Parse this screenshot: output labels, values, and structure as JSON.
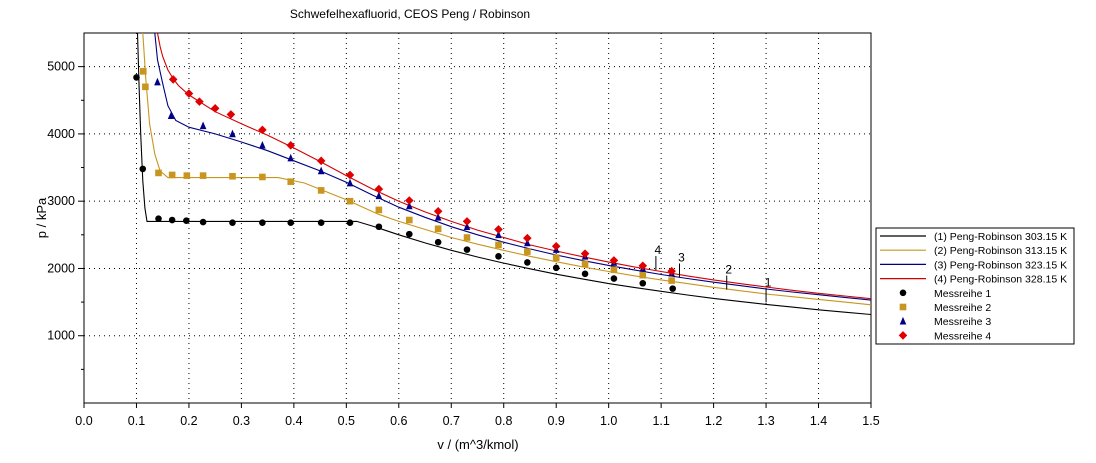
{
  "chart_data": {
    "type": "line",
    "title": "Schwefelhexafluorid,  CEOS Peng / Robinson",
    "xlabel": "v / (m^3/kmol)",
    "ylabel": "p / kPa",
    "xlim": [
      0.0,
      1.5
    ],
    "ylim": [
      0,
      5500
    ],
    "x_ticks": [
      "0.0",
      "0.1",
      "0.2",
      "0.3",
      "0.4",
      "0.5",
      "0.6",
      "0.7",
      "0.8",
      "0.9",
      "1.0",
      "1.1",
      "1.2",
      "1.3",
      "1.4",
      "1.5"
    ],
    "x_tick_values": [
      0,
      0.1,
      0.2,
      0.3,
      0.4,
      0.5,
      0.6,
      0.7,
      0.8,
      0.9,
      1.0,
      1.1,
      1.2,
      1.3,
      1.4,
      1.5
    ],
    "y_ticks": [
      "1000",
      "2000",
      "3000",
      "4000",
      "5000"
    ],
    "y_tick_values": [
      1000,
      2000,
      3000,
      4000,
      5000
    ],
    "grid": true,
    "legend_position": "right",
    "series": [
      {
        "name": "(1) Peng-Robinson 303.15 K",
        "kind": "line",
        "color": "#000000",
        "x": [
          0.102,
          0.105,
          0.108,
          0.112,
          0.116,
          0.12,
          0.13,
          0.2,
          0.3,
          0.4,
          0.48,
          0.52,
          0.55,
          0.6,
          0.65,
          0.7,
          0.75,
          0.8,
          0.85,
          0.9,
          0.95,
          1.0,
          1.05,
          1.1,
          1.15,
          1.2,
          1.25,
          1.3,
          1.35,
          1.4,
          1.45,
          1.5
        ],
        "y": [
          5500,
          4700,
          4000,
          3300,
          2900,
          2700,
          2700,
          2700,
          2700,
          2700,
          2700,
          2700,
          2630,
          2500,
          2380,
          2270,
          2170,
          2080,
          1995,
          1915,
          1845,
          1775,
          1715,
          1660,
          1605,
          1555,
          1510,
          1465,
          1425,
          1385,
          1350,
          1315
        ]
      },
      {
        "name": "(2) Peng-Robinson 313.15 K",
        "kind": "line",
        "color": "#c8961e",
        "x": [
          0.112,
          0.118,
          0.125,
          0.135,
          0.145,
          0.16,
          0.2,
          0.3,
          0.37,
          0.42,
          0.5,
          0.56,
          0.6,
          0.65,
          0.7,
          0.75,
          0.8,
          0.85,
          0.9,
          0.95,
          1.0,
          1.05,
          1.1,
          1.15,
          1.2,
          1.25,
          1.3,
          1.35,
          1.4,
          1.45,
          1.5
        ],
        "y": [
          5500,
          4800,
          4150,
          3700,
          3450,
          3350,
          3350,
          3350,
          3350,
          3270,
          3020,
          2810,
          2700,
          2580,
          2460,
          2360,
          2270,
          2180,
          2100,
          2025,
          1955,
          1890,
          1830,
          1775,
          1720,
          1670,
          1620,
          1580,
          1540,
          1500,
          1460
        ]
      },
      {
        "name": "(3) Peng-Robinson 323.15 K",
        "kind": "line",
        "color": "#000080",
        "x": [
          0.135,
          0.14,
          0.15,
          0.16,
          0.175,
          0.2,
          0.25,
          0.3,
          0.35,
          0.4,
          0.45,
          0.5,
          0.55,
          0.6,
          0.65,
          0.7,
          0.75,
          0.8,
          0.85,
          0.9,
          0.95,
          1.0,
          1.05,
          1.1,
          1.15,
          1.2,
          1.25,
          1.3,
          1.35,
          1.4,
          1.45,
          1.5
        ],
        "y": [
          5500,
          5100,
          4750,
          4420,
          4200,
          4100,
          4000,
          3880,
          3750,
          3600,
          3450,
          3280,
          3090,
          2910,
          2760,
          2620,
          2500,
          2390,
          2290,
          2200,
          2120,
          2045,
          1975,
          1910,
          1850,
          1795,
          1745,
          1695,
          1650,
          1610,
          1570,
          1530
        ]
      },
      {
        "name": "(4) Peng-Robinson 328.15 K",
        "kind": "line",
        "color": "#d40000",
        "x": [
          0.14,
          0.145,
          0.15,
          0.16,
          0.17,
          0.18,
          0.2,
          0.25,
          0.3,
          0.35,
          0.4,
          0.45,
          0.5,
          0.55,
          0.6,
          0.65,
          0.7,
          0.75,
          0.8,
          0.85,
          0.9,
          0.95,
          1.0,
          1.05,
          1.1,
          1.15,
          1.2,
          1.25,
          1.3,
          1.35,
          1.4,
          1.45,
          1.5
        ],
        "y": [
          5500,
          5300,
          5150,
          4950,
          4820,
          4720,
          4580,
          4330,
          4150,
          3980,
          3790,
          3590,
          3380,
          3180,
          3000,
          2840,
          2700,
          2570,
          2460,
          2350,
          2260,
          2175,
          2095,
          2020,
          1955,
          1890,
          1830,
          1775,
          1725,
          1675,
          1630,
          1590,
          1550
        ]
      },
      {
        "name": "Messreihe 1",
        "kind": "marker",
        "marker": "circle",
        "color": "#000000",
        "x": [
          0.1,
          0.112,
          0.142,
          0.168,
          0.195,
          0.227,
          0.283,
          0.34,
          0.394,
          0.452,
          0.507,
          0.562,
          0.62,
          0.675,
          0.73,
          0.79,
          0.845,
          0.9,
          0.955,
          1.01,
          1.065,
          1.122
        ],
        "y": [
          4840,
          3480,
          2740,
          2720,
          2710,
          2690,
          2680,
          2680,
          2680,
          2680,
          2680,
          2620,
          2510,
          2390,
          2280,
          2180,
          2090,
          2010,
          1920,
          1850,
          1780,
          1700
        ]
      },
      {
        "name": "Messreihe 2",
        "kind": "marker",
        "marker": "square",
        "color": "#c8961e",
        "x": [
          0.113,
          0.117,
          0.142,
          0.168,
          0.196,
          0.227,
          0.283,
          0.34,
          0.394,
          0.452,
          0.507,
          0.562,
          0.62,
          0.675,
          0.73,
          0.79,
          0.845,
          0.9,
          0.955,
          1.01,
          1.065,
          1.12
        ],
        "y": [
          4930,
          4700,
          3420,
          3390,
          3380,
          3380,
          3370,
          3360,
          3290,
          3160,
          3000,
          2870,
          2720,
          2590,
          2460,
          2350,
          2250,
          2160,
          2070,
          1980,
          1900,
          1820
        ]
      },
      {
        "name": "Messreihe 3",
        "kind": "marker",
        "marker": "triangle",
        "color": "#00008b",
        "x": [
          0.14,
          0.166,
          0.227,
          0.283,
          0.34,
          0.394,
          0.452,
          0.507,
          0.562,
          0.62,
          0.675,
          0.73,
          0.79,
          0.845,
          0.9,
          0.955,
          1.01,
          1.065,
          1.12
        ],
        "y": [
          4770,
          4270,
          4120,
          4000,
          3830,
          3640,
          3450,
          3270,
          3080,
          2930,
          2760,
          2620,
          2500,
          2380,
          2280,
          2180,
          2090,
          2000,
          1930
        ]
      },
      {
        "name": "Messreihe 4",
        "kind": "marker",
        "marker": "diamond",
        "color": "#e00000",
        "x": [
          0.17,
          0.2,
          0.22,
          0.25,
          0.28,
          0.34,
          0.394,
          0.452,
          0.507,
          0.562,
          0.62,
          0.675,
          0.73,
          0.79,
          0.845,
          0.9,
          0.955,
          1.01,
          1.065,
          1.12
        ],
        "y": [
          4810,
          4600,
          4480,
          4380,
          4290,
          4060,
          3830,
          3600,
          3390,
          3180,
          3010,
          2850,
          2700,
          2580,
          2450,
          2330,
          2220,
          2120,
          2040,
          1960
        ]
      }
    ],
    "annotations": [
      {
        "label": "1",
        "x": 1.3,
        "y": 1600
      },
      {
        "label": "2",
        "x": 1.225,
        "y": 1790
      },
      {
        "label": "3",
        "x": 1.135,
        "y": 1970
      },
      {
        "label": "4",
        "x": 1.09,
        "y": 2080
      }
    ]
  }
}
